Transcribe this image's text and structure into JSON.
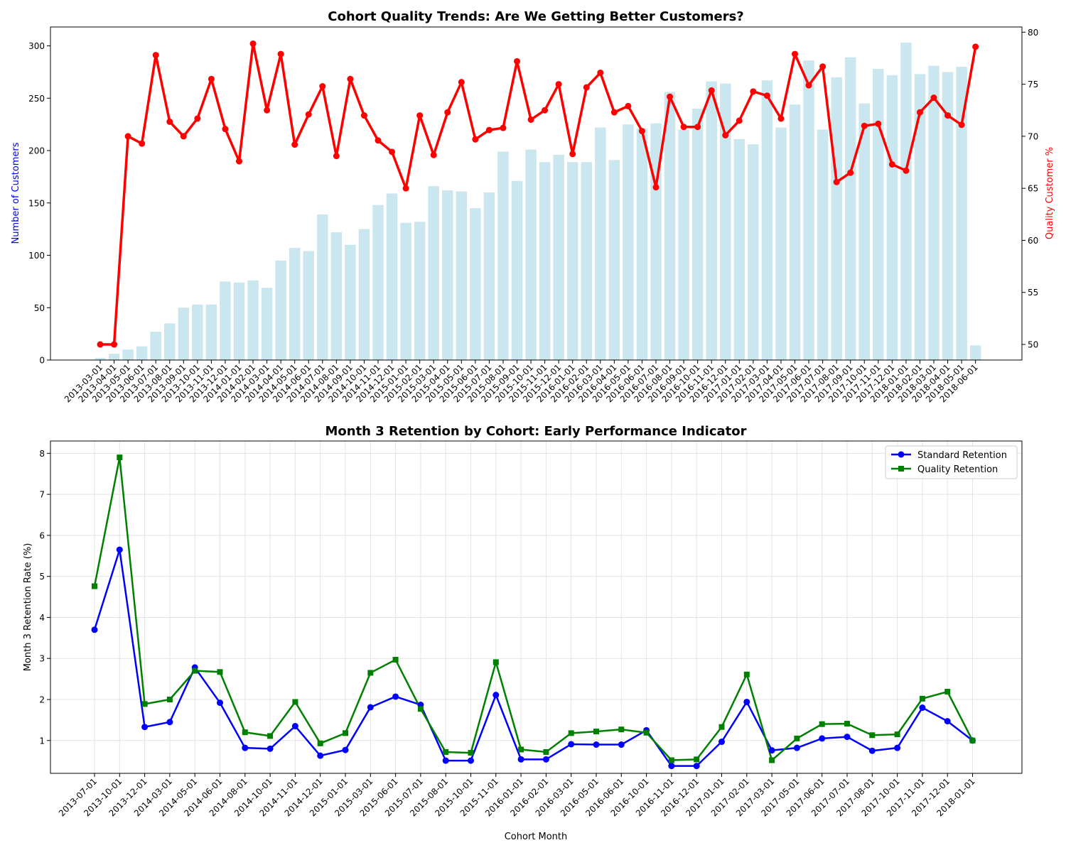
{
  "chart_data": [
    {
      "type": "bar",
      "title": "Cohort Quality Trends: Are We Getting Better Customers?",
      "xlabel": "",
      "ylabel": "Number of Customers",
      "y2label": "Quality Customer %",
      "ylim": [
        0,
        318
      ],
      "y2lim": [
        48.5,
        80.5
      ],
      "yticks": [
        0,
        50,
        100,
        150,
        200,
        250,
        300
      ],
      "y2ticks": [
        50,
        55,
        60,
        65,
        70,
        75,
        80
      ],
      "grid": false,
      "colors": {
        "bars": "#add8e6",
        "line": "#ff0000",
        "ylabel": "#0000ff",
        "y2label": "#ff0000"
      },
      "categories": [
        "2013-03-01",
        "2013-04-01",
        "2013-05-01",
        "2013-06-01",
        "2013-07-01",
        "2013-08-01",
        "2013-09-01",
        "2013-10-01",
        "2013-11-01",
        "2013-12-01",
        "2014-01-01",
        "2014-02-01",
        "2014-03-01",
        "2014-04-01",
        "2014-05-01",
        "2014-06-01",
        "2014-07-01",
        "2014-08-01",
        "2014-09-01",
        "2014-10-01",
        "2014-11-01",
        "2014-12-01",
        "2015-01-01",
        "2015-02-01",
        "2015-03-01",
        "2015-04-01",
        "2015-05-01",
        "2015-06-01",
        "2015-07-01",
        "2015-08-01",
        "2015-09-01",
        "2015-10-01",
        "2015-11-01",
        "2015-12-01",
        "2016-01-01",
        "2016-02-01",
        "2016-03-01",
        "2016-04-01",
        "2016-05-01",
        "2016-06-01",
        "2016-07-01",
        "2016-08-01",
        "2016-09-01",
        "2016-10-01",
        "2016-11-01",
        "2016-12-01",
        "2017-01-01",
        "2017-02-01",
        "2017-03-01",
        "2017-04-01",
        "2017-05-01",
        "2017-06-01",
        "2017-07-01",
        "2017-08-01",
        "2017-09-01",
        "2017-10-01",
        "2017-11-01",
        "2017-12-01",
        "2018-01-01",
        "2018-02-01",
        "2018-03-01",
        "2018-04-01",
        "2018-05-01",
        "2018-06-01"
      ],
      "series": [
        {
          "name": "Number of Customers",
          "kind": "bar",
          "values": [
            2,
            6,
            10,
            13,
            27,
            35,
            50,
            53,
            53,
            75,
            74,
            76,
            69,
            95,
            107,
            104,
            139,
            122,
            110,
            125,
            148,
            159,
            131,
            132,
            166,
            162,
            161,
            145,
            160,
            199,
            171,
            201,
            189,
            196,
            189,
            189,
            222,
            191,
            225,
            221,
            226,
            256,
            220,
            240,
            266,
            264,
            211,
            206,
            267,
            222,
            244,
            286,
            220,
            270,
            289,
            245,
            278,
            272,
            303,
            273,
            281,
            275,
            280,
            14
          ]
        },
        {
          "name": "Quality Customer %",
          "kind": "line",
          "values": [
            50,
            50,
            70,
            69.3,
            77.8,
            71.4,
            70,
            71.7,
            75.5,
            70.7,
            67.6,
            78.9,
            72.5,
            77.9,
            69.2,
            72.1,
            74.8,
            68.1,
            75.5,
            72,
            69.6,
            68.5,
            65,
            72,
            68.2,
            72.3,
            75.2,
            69.7,
            70.6,
            70.8,
            77.2,
            71.6,
            72.5,
            75,
            68.3,
            74.7,
            76.1,
            72.3,
            72.9,
            70.5,
            65.1,
            73.8,
            70.9,
            70.9,
            74.4,
            70.1,
            71.5,
            74.3,
            73.9,
            71.7,
            77.9,
            74.9,
            76.7,
            65.6,
            66.5,
            71,
            71.2,
            67.3,
            66.7,
            72.3,
            73.7,
            72,
            71.1,
            78.6
          ]
        }
      ]
    },
    {
      "type": "line",
      "title": "Month 3 Retention by Cohort: Early Performance Indicator",
      "xlabel": "Cohort Month",
      "ylabel": "Month 3 Retention Rate (%)",
      "ylim": [
        0.2,
        8.3
      ],
      "yticks": [
        1,
        2,
        3,
        4,
        5,
        6,
        7,
        8
      ],
      "grid": true,
      "legend": "top-right",
      "categories": [
        "2013-07-01",
        "2013-10-01",
        "2013-12-01",
        "2014-03-01",
        "2014-05-01",
        "2014-06-01",
        "2014-08-01",
        "2014-10-01",
        "2014-11-01",
        "2014-12-01",
        "2015-01-01",
        "2015-03-01",
        "2015-06-01",
        "2015-07-01",
        "2015-08-01",
        "2015-10-01",
        "2015-11-01",
        "2016-01-01",
        "2016-02-01",
        "2016-03-01",
        "2016-05-01",
        "2016-06-01",
        "2016-10-01",
        "2016-11-01",
        "2016-12-01",
        "2017-01-01",
        "2017-02-01",
        "2017-03-01",
        "2017-05-01",
        "2017-06-01",
        "2017-07-01",
        "2017-08-01",
        "2017-10-01",
        "2017-11-01",
        "2017-12-01",
        "2018-01-01"
      ],
      "series": [
        {
          "name": "Standard Retention",
          "color": "#0000ff",
          "marker": "circle",
          "values": [
            3.7,
            5.65,
            1.33,
            1.45,
            2.78,
            1.92,
            0.82,
            0.8,
            1.35,
            0.63,
            0.77,
            1.81,
            2.07,
            1.87,
            0.51,
            0.51,
            2.11,
            0.54,
            0.54,
            0.91,
            0.9,
            0.9,
            1.25,
            0.38,
            0.38,
            0.97,
            1.94,
            0.76,
            0.82,
            1.05,
            1.09,
            0.75,
            0.82,
            1.8,
            1.47,
            1.0
          ]
        },
        {
          "name": "Quality Retention",
          "color": "#008000",
          "marker": "square",
          "values": [
            4.76,
            7.9,
            1.89,
            2.0,
            2.7,
            2.67,
            1.2,
            1.11,
            1.94,
            0.93,
            1.18,
            2.65,
            2.97,
            1.77,
            0.72,
            0.7,
            2.91,
            0.78,
            0.72,
            1.18,
            1.22,
            1.27,
            1.19,
            0.52,
            0.54,
            1.33,
            2.61,
            0.52,
            1.05,
            1.4,
            1.41,
            1.13,
            1.15,
            2.02,
            2.19,
            1.0
          ]
        }
      ]
    }
  ]
}
